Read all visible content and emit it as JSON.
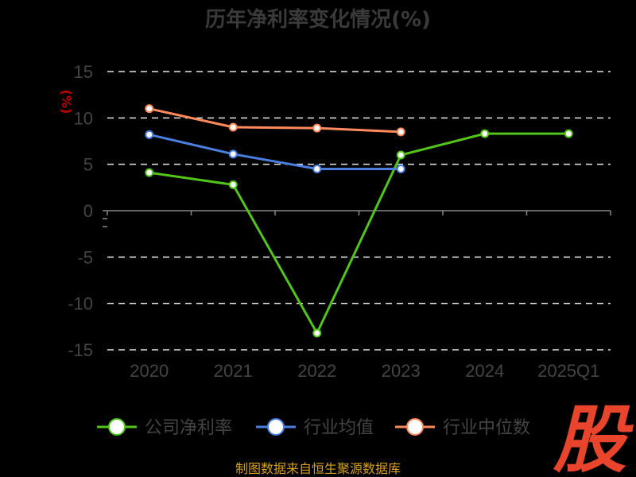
{
  "chart_data": {
    "type": "line",
    "title": "历年净利率变化情况(%)",
    "ylabel": "(%)",
    "categories": [
      "2020",
      "2021",
      "2022",
      "2023",
      "2024",
      "2025Q1"
    ],
    "ylim": [
      -15,
      15
    ],
    "yticks": [
      15,
      10,
      5,
      0,
      -5,
      -10,
      -15
    ],
    "grid": true,
    "legend_position": "bottom",
    "series": [
      {
        "name": "公司净利率",
        "color": "#52c41a",
        "values": [
          4.1,
          2.8,
          -13.2,
          6.0,
          8.3,
          8.3
        ]
      },
      {
        "name": "行业均值",
        "color": "#4a7fe0",
        "values": [
          8.2,
          6.1,
          4.5,
          4.5,
          null,
          null
        ]
      },
      {
        "name": "行业中位数",
        "color": "#ff8a5c",
        "values": [
          11.0,
          9.0,
          8.9,
          8.5,
          null,
          null
        ]
      }
    ]
  },
  "watermark": {
    "text": "股",
    "color": "#e8452c"
  },
  "source": "制图数据来自恒生聚源数据库"
}
